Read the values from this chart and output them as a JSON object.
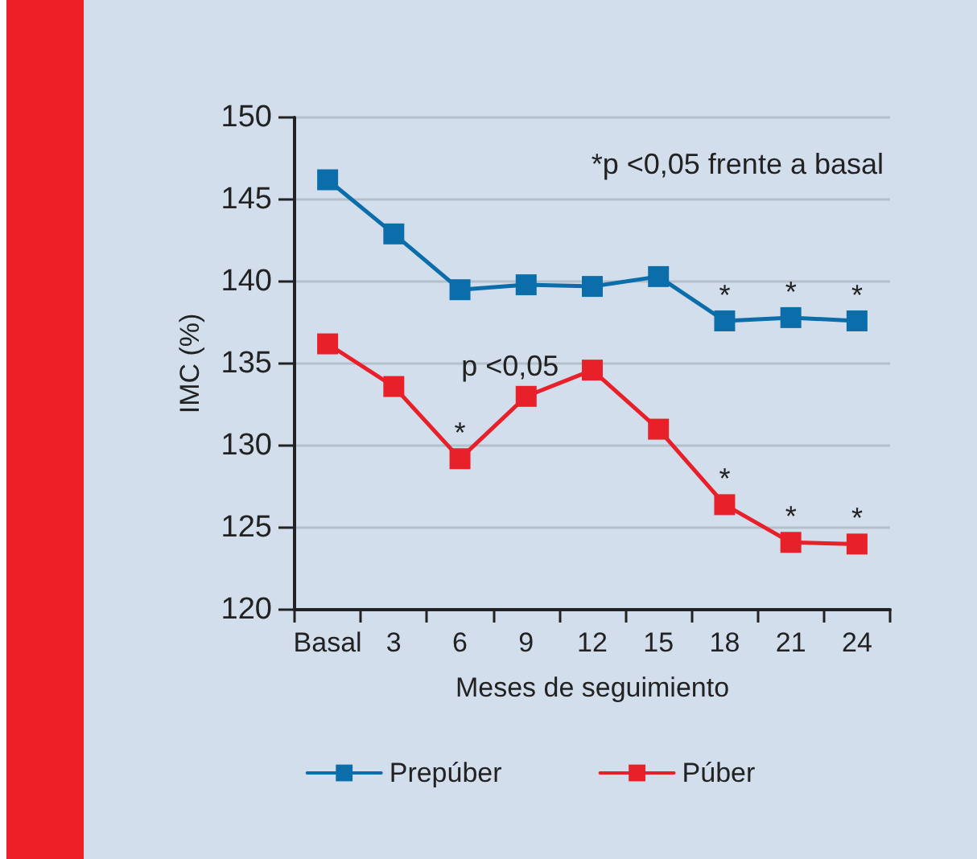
{
  "chart_data": {
    "type": "line",
    "xlabel": "Meses de seguimiento",
    "ylabel": "IMC (%)",
    "categories": [
      "Basal",
      "3",
      "6",
      "9",
      "12",
      "15",
      "18",
      "21",
      "24"
    ],
    "series": [
      {
        "name": "Prepúber",
        "color": "#0b6eab",
        "values": [
          146.2,
          142.9,
          139.5,
          139.8,
          139.7,
          140.3,
          137.6,
          137.8,
          137.6
        ]
      },
      {
        "name": "Púber",
        "color": "#e8202a",
        "values": [
          136.2,
          133.6,
          129.2,
          133.0,
          134.6,
          131.0,
          126.4,
          124.1,
          124.0
        ]
      }
    ],
    "ylim": [
      120,
      150
    ],
    "yticks": [
      120,
      125,
      130,
      135,
      140,
      145,
      150
    ],
    "grid": "y",
    "legend": "bottom",
    "marker": "square",
    "line_style": "solid",
    "annotations": [
      "*p <0,05 frente a basal",
      "p <0,05",
      {
        "text": "*",
        "x": "18",
        "y": 137.6
      },
      {
        "text": "*",
        "x": "21",
        "y": 137.8
      },
      {
        "text": "*",
        "x": "24",
        "y": 137.6
      },
      {
        "text": "*",
        "x": "6",
        "y": 129.2
      },
      {
        "text": "*",
        "x": "18",
        "y": 126.4
      },
      {
        "text": "*",
        "x": "21",
        "y": 124.1
      },
      {
        "text": "*",
        "x": "24",
        "y": 124.0
      }
    ]
  }
}
